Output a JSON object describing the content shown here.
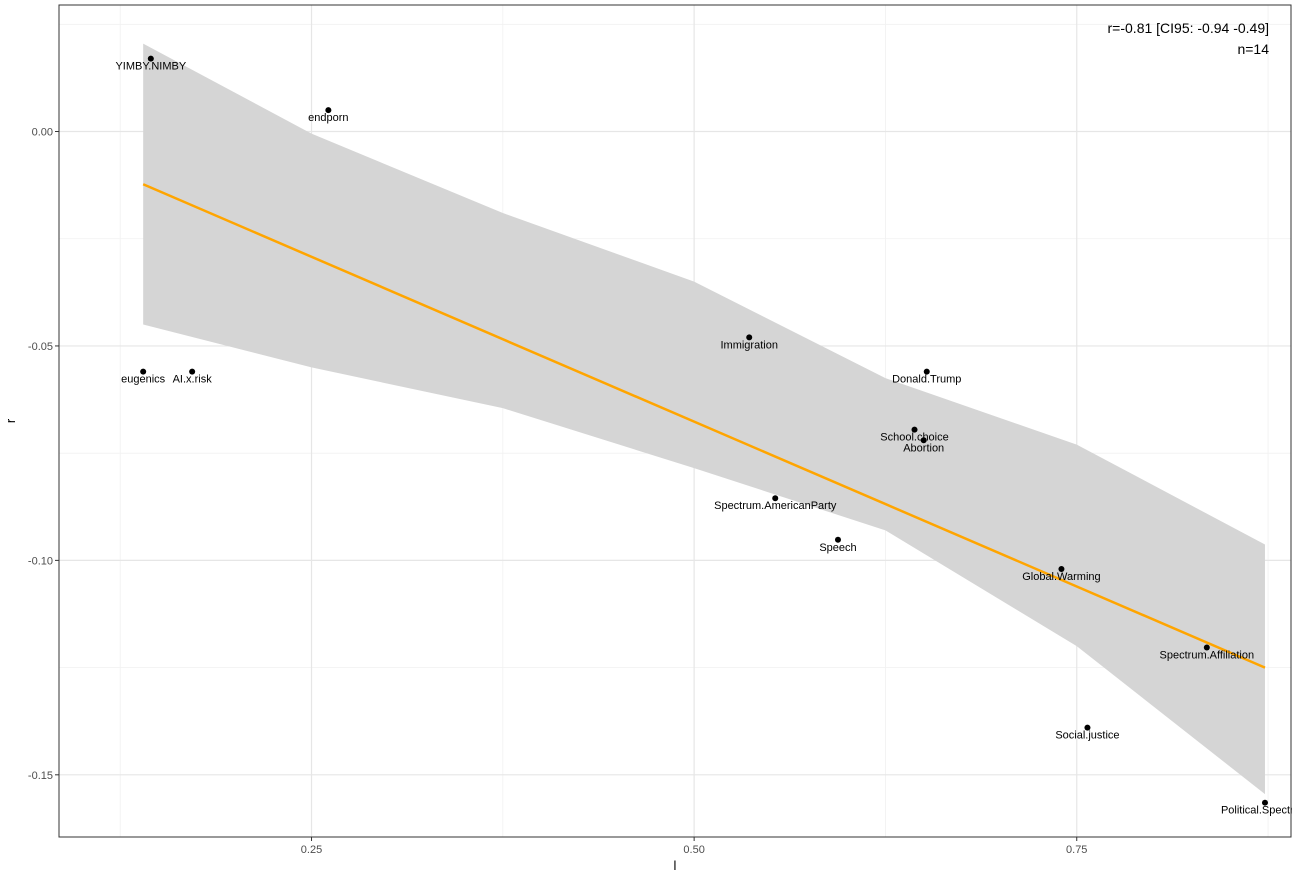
{
  "chart_data": {
    "type": "scatter",
    "xlabel": "l",
    "ylabel": "r",
    "xlim": [
      0.085,
      0.89
    ],
    "ylim": [
      -0.1645,
      0.0295
    ],
    "x_ticks": [
      0.25,
      0.5,
      0.75
    ],
    "x_tick_labels": [
      "0.25",
      "0.50",
      "0.75"
    ],
    "x_minor_ticks": [
      0.125,
      0.375,
      0.625,
      0.875
    ],
    "y_ticks": [
      0.0,
      -0.05,
      -0.1,
      -0.15
    ],
    "y_tick_labels": [
      "0.00",
      "-0.05",
      "-0.10",
      "-0.15"
    ],
    "y_minor_ticks": [
      0.025,
      -0.025,
      -0.075,
      -0.125
    ],
    "grid": true,
    "points": [
      {
        "label": "YIMBY.NIMBY",
        "x": 0.145,
        "y": 0.017
      },
      {
        "label": "endporn",
        "x": 0.261,
        "y": 0.005
      },
      {
        "label": "eugenics",
        "x": 0.14,
        "y": -0.056
      },
      {
        "label": "AI.x.risk",
        "x": 0.172,
        "y": -0.056
      },
      {
        "label": "Immigration",
        "x": 0.536,
        "y": -0.048
      },
      {
        "label": "Donald.Trump",
        "x": 0.652,
        "y": -0.056
      },
      {
        "label": "School.choice",
        "x": 0.644,
        "y": -0.0695
      },
      {
        "label": "Abortion",
        "x": 0.65,
        "y": -0.072
      },
      {
        "label": "Spectrum.AmericanParty",
        "x": 0.553,
        "y": -0.0855
      },
      {
        "label": "Speech",
        "x": 0.594,
        "y": -0.0952
      },
      {
        "label": "Global.Warming",
        "x": 0.74,
        "y": -0.102
      },
      {
        "label": "Spectrum.Affiliation",
        "x": 0.835,
        "y": -0.1203
      },
      {
        "label": "Social.justice",
        "x": 0.757,
        "y": -0.139
      },
      {
        "label": "Political.Spectrum",
        "x": 0.873,
        "y": -0.1565
      }
    ],
    "fit_line": {
      "x": [
        0.14,
        0.873
      ],
      "y": [
        -0.0123,
        -0.125
      ],
      "color": "#FFA500"
    },
    "confidence_band": {
      "x": [
        0.14,
        0.25,
        0.375,
        0.5,
        0.625,
        0.75,
        0.873
      ],
      "upper": [
        0.0205,
        -0.0005,
        -0.019,
        -0.035,
        -0.0575,
        -0.073,
        -0.0963
      ],
      "lower": [
        -0.045,
        -0.055,
        -0.0645,
        -0.0785,
        -0.093,
        -0.12,
        -0.1545
      ],
      "color": "#D5D5D5"
    },
    "point_color": "#000000",
    "annotations": [
      "r=-0.81 [CI95: -0.94 -0.49]",
      "n=14"
    ]
  }
}
